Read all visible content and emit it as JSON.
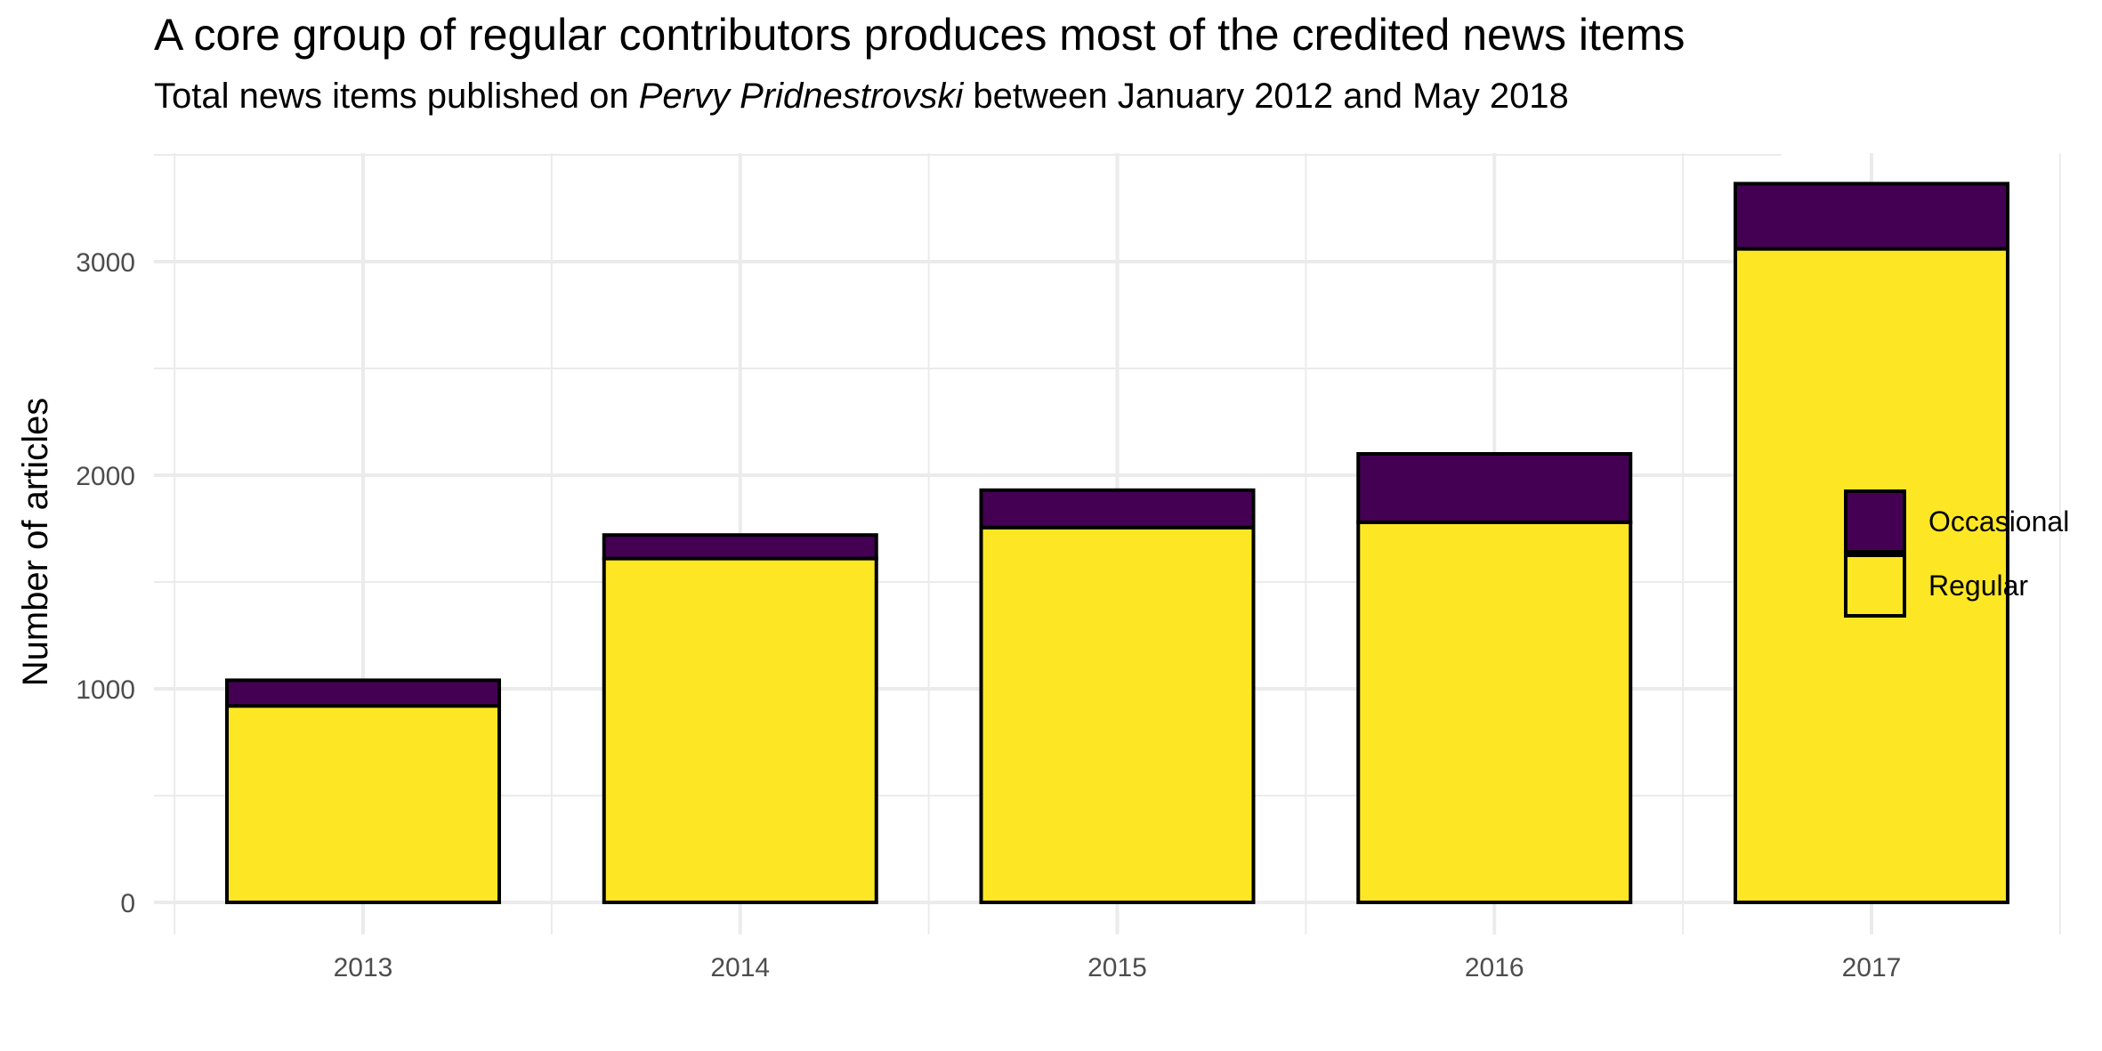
{
  "chart_data": {
    "type": "bar",
    "stacked": true,
    "title": "A core group of regular contributors produces most of the credited news items",
    "subtitle": {
      "before": "Total news items published on ",
      "emphasis": "Pervy Pridnestrovski",
      "after": " between January 2012 and May 2018"
    },
    "xlabel": "",
    "ylabel": "Number of articles",
    "categories": [
      "2013",
      "2014",
      "2015",
      "2016",
      "2017"
    ],
    "series": [
      {
        "name": "Regular",
        "color": "#FDE725",
        "values": [
          920,
          1610,
          1755,
          1780,
          3060
        ]
      },
      {
        "name": "Occasional",
        "color": "#440154",
        "values": [
          120,
          110,
          175,
          320,
          305
        ]
      }
    ],
    "legend": {
      "position": "right",
      "order": [
        "Occasional",
        "Regular"
      ]
    },
    "ylim": [
      0,
      3500
    ],
    "yticks": [
      0,
      1000,
      2000,
      3000
    ],
    "grid": true
  }
}
